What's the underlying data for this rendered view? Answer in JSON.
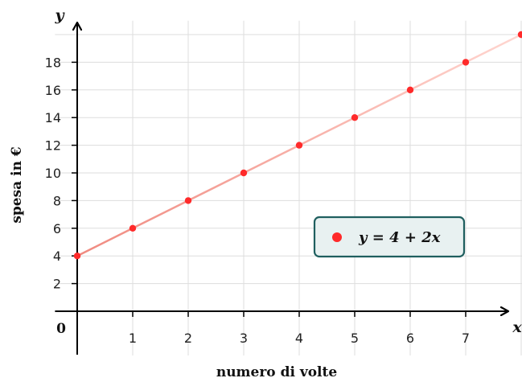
{
  "chart_data": {
    "type": "line",
    "title": "",
    "xlabel": "numero di volte",
    "ylabel": "spesa in €",
    "x_axis_letter": "x",
    "y_axis_letter": "y",
    "origin_label": "0",
    "xlim": [
      -0.4,
      8.0
    ],
    "ylim": [
      -3.2,
      21.0
    ],
    "x_ticks": [
      1,
      2,
      3,
      4,
      5,
      6,
      7
    ],
    "y_ticks": [
      2,
      4,
      6,
      8,
      10,
      12,
      14,
      16,
      18
    ],
    "grid": true,
    "legend_position": "center-right",
    "series": [
      {
        "name": "y = 4 + 2x",
        "x": [
          0,
          1,
          2,
          3,
          4,
          5,
          6,
          7,
          8
        ],
        "values": [
          4,
          6,
          8,
          10,
          12,
          14,
          16,
          18,
          20
        ]
      }
    ],
    "colors": {
      "point": "#ff2a2a",
      "line_start": "#f08a80",
      "line_end": "#ffd6d0",
      "grid": "#dddddd",
      "axis": "#000000",
      "legend_border": "#1f5f5f",
      "legend_fill": "#e8f1f1"
    }
  }
}
